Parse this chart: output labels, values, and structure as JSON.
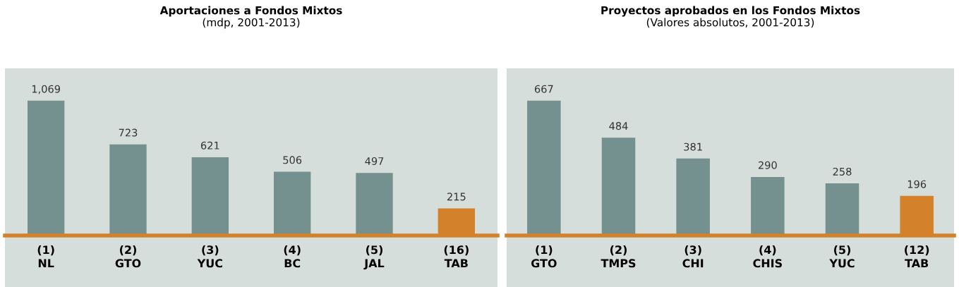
{
  "chart_data": [
    {
      "type": "bar",
      "title": "Aportaciones a Fondos Mixtos",
      "subtitle": "(mdp, 2001-2013)",
      "categories": [
        "(1)\nNL",
        "(2)\nGTO",
        "(3)\nYUC",
        "(4)\nBC",
        "(5)\nJAL",
        "(16)\nTAB"
      ],
      "values": [
        1069,
        723,
        621,
        506,
        497,
        215
      ],
      "value_labels": [
        "1,069",
        "723",
        "621",
        "506",
        "497",
        "215"
      ],
      "colors": [
        "#74918f",
        "#74918f",
        "#74918f",
        "#74918f",
        "#74918f",
        "#d4812b"
      ],
      "grid": false,
      "legend": false
    },
    {
      "type": "bar",
      "title": "Proyectos aprobados en los Fondos Mixtos",
      "subtitle": "(Valores absolutos, 2001-2013)",
      "categories": [
        "(1)\nGTO",
        "(2)\nTMPS",
        "(3)\nCHI",
        "(4)\nCHIS",
        "(5)\nYUC",
        "(12)\nTAB"
      ],
      "values": [
        667,
        484,
        381,
        290,
        258,
        196
      ],
      "data_labels": true,
      "colors": [
        "#74918f",
        "#74918f",
        "#74918f",
        "#74918f",
        "#74918f",
        "#d4812b"
      ],
      "grid": false,
      "legend": false
    }
  ]
}
